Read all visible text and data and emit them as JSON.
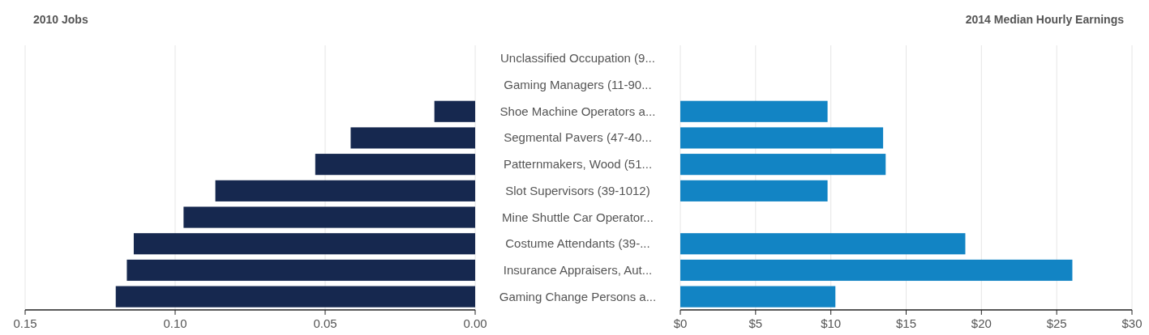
{
  "chart_data": [
    {
      "type": "bar",
      "orientation": "horizontal",
      "title": "2010 Jobs",
      "categories": [
        "Unclassified Occupation (9...",
        "Gaming Managers (11-90...",
        "Shoe Machine Operators a...",
        "Segmental Pavers (47-40...",
        "Patternmakers, Wood (51...",
        "Slot Supervisors (39-1012)",
        "Mine Shuttle Car Operator...",
        "Costume Attendants (39-...",
        "Insurance Appraisers, Aut...",
        "Gaming Change Persons a..."
      ],
      "values": [
        null,
        null,
        0.0136,
        0.0415,
        0.0533,
        0.0866,
        0.0972,
        0.1138,
        0.1161,
        0.1198
      ],
      "color": "#16284f",
      "xlim": [
        0.15,
        0
      ],
      "xticks": [
        {
          "value": 0.15,
          "label": "0.15"
        },
        {
          "value": 0.1,
          "label": "0.10"
        },
        {
          "value": 0.05,
          "label": "0.05"
        },
        {
          "value": 0,
          "label": "0.00"
        }
      ],
      "grid": "x"
    },
    {
      "type": "bar",
      "orientation": "horizontal",
      "title": "2014 Median Hourly Earnings",
      "values": [
        null,
        null,
        9.78,
        13.47,
        13.64,
        9.78,
        null,
        18.93,
        26.04,
        10.3
      ],
      "color": "#1284c4",
      "xlim": [
        0,
        30
      ],
      "xticks": [
        {
          "value": 0,
          "label": "$0"
        },
        {
          "value": 5,
          "label": "$5"
        },
        {
          "value": 10,
          "label": "$10"
        },
        {
          "value": 15,
          "label": "$15"
        },
        {
          "value": 20,
          "label": "$20"
        },
        {
          "value": 25,
          "label": "$25"
        },
        {
          "value": 30,
          "label": "$30"
        }
      ],
      "grid": "x",
      "tick_labels": "x"
    }
  ]
}
